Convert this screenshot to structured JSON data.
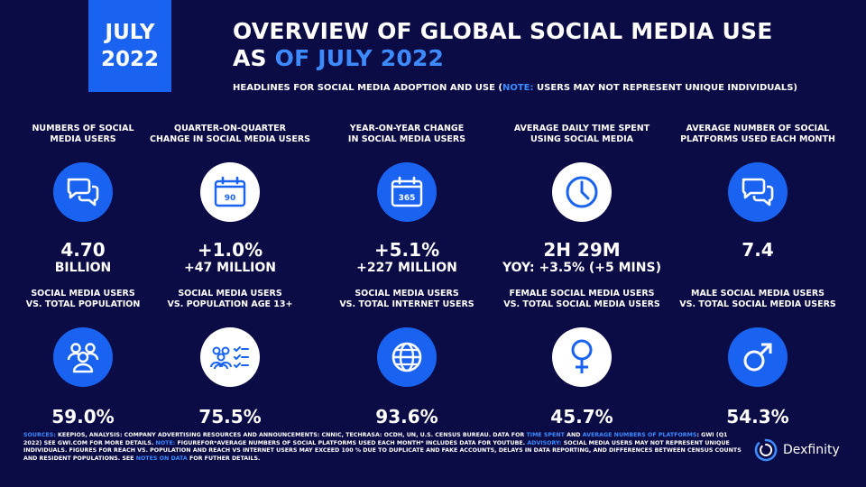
{
  "badge": {
    "line1": "JULY",
    "line2": "2022"
  },
  "header": {
    "title_line1": "OVERVIEW OF GLOBAL SOCIAL MEDIA USE",
    "title_line2_prefix": "AS ",
    "title_line2_accent": "OF JULY 2022",
    "subtitle_prefix": "HEADLINES FOR SOCIAL MEDIA ADOPTION AND USE (",
    "subtitle_note": "NOTE:",
    "subtitle_suffix": " USERS MAY NOT REPRESENT UNIQUE INDIVIDUALS)"
  },
  "row1": [
    {
      "label": "NUMBERS OF SOCIAL\nMEDIA USERS",
      "icon": "chat-bubbles-icon",
      "value": "4.70",
      "sub": "BILLION"
    },
    {
      "label": "QUARTER-ON-QUARTER\nCHANGE IN SOCIAL MEDIA USERS",
      "icon": "calendar-icon",
      "icon_text": "90",
      "value": "+1.0%",
      "sub": "+47 MILLION"
    },
    {
      "label": "YEAR-ON-YEAR CHANGE\nIN SOCIAL MEDIA USERS",
      "icon": "calendar-icon",
      "icon_text": "365",
      "value": "+5.1%",
      "sub": "+227 MILLION"
    },
    {
      "label": "AVERAGE DAILY TIME SPENT\nUSING SOCIAL MEDIA",
      "icon": "clock-icon",
      "value": "2H 29M",
      "sub": "YOY: +3.5% (+5 MINS)"
    },
    {
      "label": "AVERAGE NUMBER OF SOCIAL\nPLATFORMS USED EACH MONTH",
      "icon": "chat-bubbles-icon",
      "value": "7.4",
      "sub": ""
    }
  ],
  "row2": [
    {
      "label": "SOCIAL MEDIA USERS\nVS. TOTAL POPULATION",
      "icon": "people-icon",
      "value": "59.0%"
    },
    {
      "label": "SOCIAL MEDIA USERS\nVS. POPULATION AGE 13+",
      "icon": "people-checklist-icon",
      "value": "75.5%"
    },
    {
      "label": "SOCIAL MEDIA USERS\nVS. TOTAL INTERNET USERS",
      "icon": "globe-icon",
      "value": "93.6%"
    },
    {
      "label": "FEMALE SOCIAL MEDIA USERS\nVS. TOTAL SOCIAL MEDIA USERS",
      "icon": "female-symbol-icon",
      "value": "45.7%"
    },
    {
      "label": "MALE SOCIAL MEDIA USERS\nVS. TOTAL SOCIAL MEDIA USERS",
      "icon": "male-symbol-icon",
      "value": "54.3%"
    }
  ],
  "footer": {
    "sources": "SOURCES:",
    "t1": " KEEPIOS, ANALYSIS: COMPANY ADVERTISING RESOURCES AND ANNOUNCEMENTS: CNNIC, TECHRASA: OCDH, UN, U.S. CENSUS BUREAU. DATA FOR ",
    "time_spent": "TIME SPENT",
    "t2": " AND ",
    "avg_platforms": "AVERAGE NUMBERS OF PLATFORMS",
    "t3": ": GWI (Q1 2022) SEE GWI.COM FOR MORE DETAILS. ",
    "note": "NOTE:",
    "t4": " FIGUREFOR*AVERAGE NUMBERS OF SOCIAL PLATFORMS USED EACH MONTH* INCLUDES DATA FOR YOUTUBE. ",
    "advisory": "ADVISORY:",
    "t5": " SOCIAL MEDIA USERS MAY NOT REPRESENT UNIQUE INDIVIDUALS. FIGURES FOR REACH VS. POPULATION AND REACH VS INTERNET USERS MAY EXCEED 100 % DUE TO DUPLICATE AND FAKE ACCOUNTS, DELAYS IN DATA REPORTING, AND DIFFERENCES BETWEEN CENSUS COUNTS AND RESIDENT POPULATIONS. SEE ",
    "notes_on_data": "NOTES ON DATA",
    "t6": " FOR FUTHER DETAILS."
  },
  "brand": {
    "name": "Dexfinity"
  },
  "colors": {
    "background": "#0b0b45",
    "accent": "#1a63f0",
    "highlight": "#3d8bff"
  }
}
